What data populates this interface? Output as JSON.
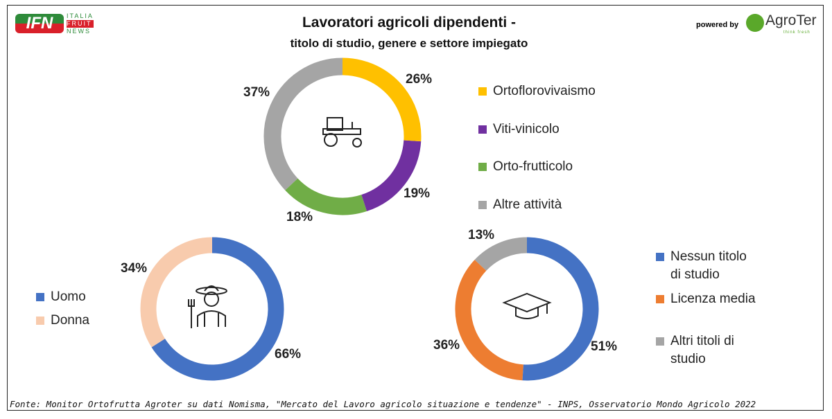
{
  "header": {
    "title_line1": "Lavoratori agricoli dipendenti -",
    "title_line2": "titolo di studio, genere e settore impiegato",
    "logo_left": {
      "mark": "IFN",
      "line1": "ITALIA",
      "line2": "FRUIT",
      "line3": "NEWS"
    },
    "powered_by": "powered by",
    "logo_right": {
      "name": "AgroTer",
      "tagline": "think fresh"
    }
  },
  "source": "Fonte: Monitor Ortofrutta Agroter su dati Nomisma, \"Mercato del Lavoro agricolo situazione e tendenze\" - INPS, Osservatorio Mondo Agricolo 2022",
  "chart_data": [
    {
      "type": "pie",
      "subtype": "donut",
      "title": "Settore impiegato",
      "icon": "tractor-icon",
      "categories": [
        "Ortoflorovivaismo",
        "Viti-vinicolo",
        "Orto-frutticolo",
        "Altre attività"
      ],
      "values": [
        26,
        19,
        18,
        37
      ],
      "labels": [
        "26%",
        "19%",
        "18%",
        "37%"
      ],
      "colors": [
        "#FFC000",
        "#7030A0",
        "#70AD47",
        "#A5A5A5"
      ],
      "legend": "right"
    },
    {
      "type": "pie",
      "subtype": "donut",
      "title": "Genere",
      "icon": "farmer-icon",
      "categories": [
        "Uomo",
        "Donna"
      ],
      "values": [
        66,
        34
      ],
      "labels": [
        "66%",
        "34%"
      ],
      "colors": [
        "#4472C4",
        "#F8CBAD"
      ],
      "legend": "left"
    },
    {
      "type": "pie",
      "subtype": "donut",
      "title": "Titolo di studio",
      "icon": "graduation-cap-icon",
      "categories": [
        "Nessun titolo di studio",
        "Licenza media",
        "Altri titoli di studio"
      ],
      "values": [
        51,
        36,
        13
      ],
      "labels": [
        "51%",
        "36%",
        "13%"
      ],
      "colors": [
        "#4472C4",
        "#ED7D31",
        "#A5A5A5"
      ],
      "legend": "right"
    }
  ]
}
